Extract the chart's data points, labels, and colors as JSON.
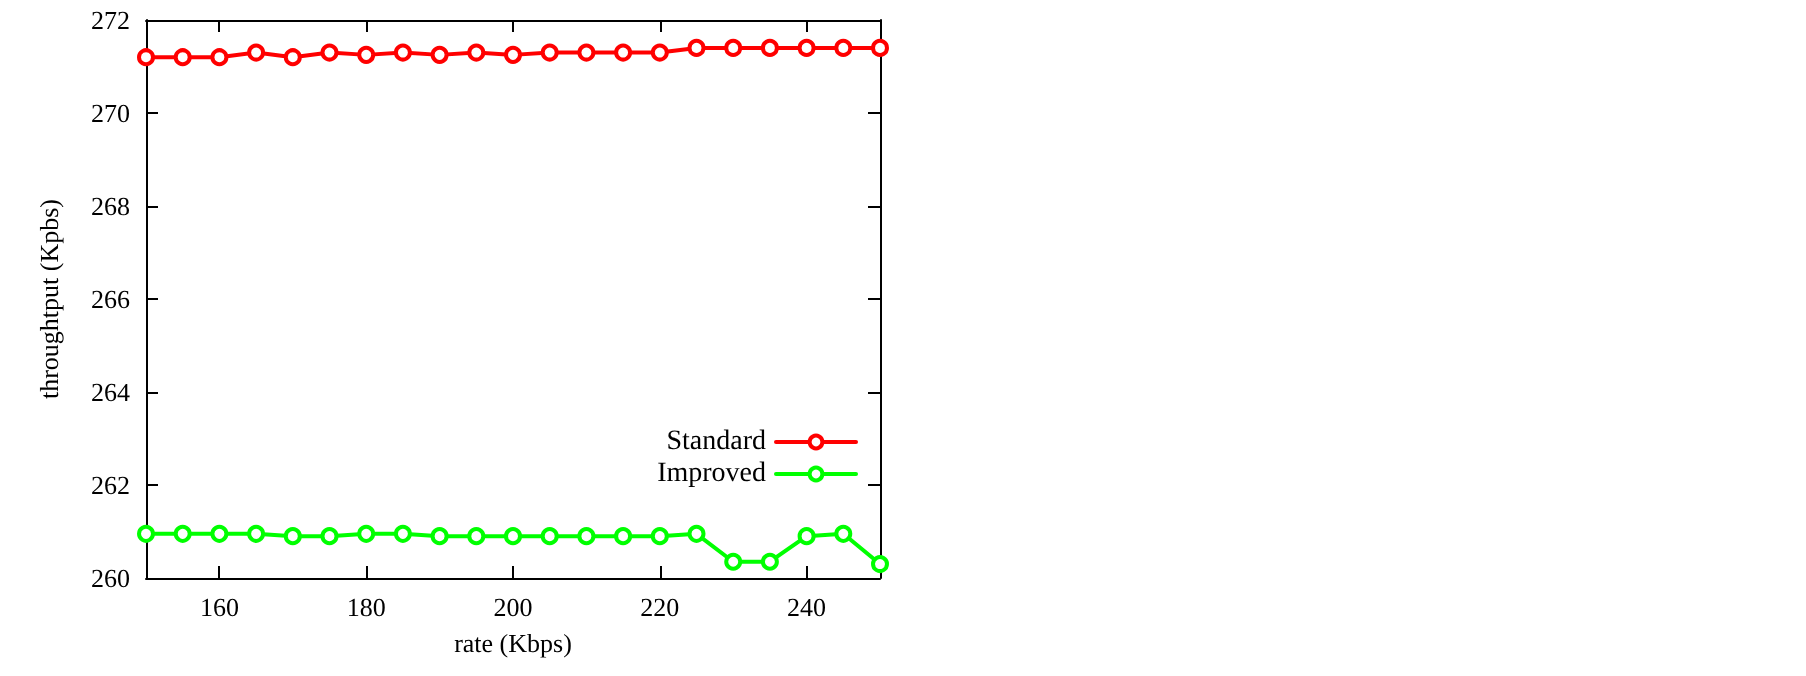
{
  "chart_data": {
    "type": "line",
    "xlabel": "rate (Kbps)",
    "ylabel": "throughtput (Kpbs)",
    "x": [
      150,
      155,
      160,
      165,
      170,
      175,
      180,
      185,
      190,
      195,
      200,
      205,
      210,
      215,
      220,
      225,
      230,
      235,
      240,
      245,
      250
    ],
    "series": [
      {
        "name": "Standard",
        "color": "#ff0000",
        "values": [
          271.2,
          271.2,
          271.2,
          271.3,
          271.2,
          271.3,
          271.25,
          271.3,
          271.25,
          271.3,
          271.25,
          271.3,
          271.3,
          271.3,
          271.3,
          271.4,
          271.4,
          271.4,
          271.4,
          271.4,
          271.4
        ]
      },
      {
        "name": "Improved",
        "color": "#00ff00",
        "values": [
          260.95,
          260.95,
          260.95,
          260.95,
          260.9,
          260.9,
          260.95,
          260.95,
          260.9,
          260.9,
          260.9,
          260.9,
          260.9,
          260.9,
          260.9,
          260.95,
          260.35,
          260.35,
          260.9,
          260.95,
          260.3
        ]
      }
    ],
    "xlim": [
      150,
      250
    ],
    "xticks": [
      160,
      180,
      200,
      220,
      240
    ],
    "ylim": [
      260,
      272
    ],
    "yticks": [
      260,
      262,
      264,
      266,
      268,
      270,
      272
    ],
    "grid": false,
    "legend": "bottom right",
    "marker": "circle",
    "line_style": "solid"
  }
}
